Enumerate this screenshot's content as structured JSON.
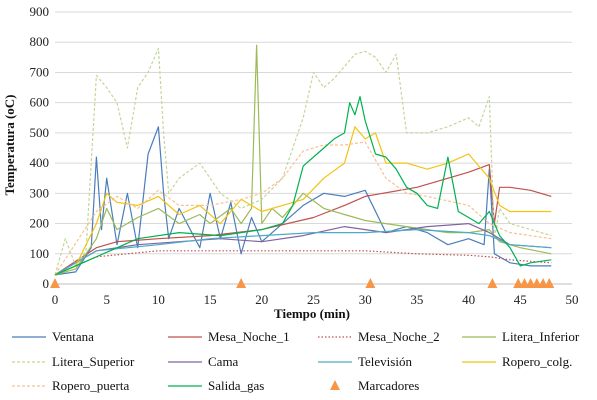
{
  "chart_data": {
    "type": "line",
    "title": "",
    "xlabel": "Tiempo (min)",
    "ylabel": "Temperatura (oC)",
    "xlim": [
      0,
      50
    ],
    "ylim": [
      0,
      900
    ],
    "xticks": [
      0,
      5,
      10,
      15,
      20,
      25,
      30,
      35,
      40,
      45,
      50
    ],
    "yticks": [
      0,
      100,
      200,
      300,
      400,
      500,
      600,
      700,
      800,
      900
    ],
    "grid": "horizontal",
    "legend_position": "bottom",
    "series": [
      {
        "name": "Ventana",
        "color": "#4a7ebb",
        "dash": "solid",
        "x": [
          0,
          2,
          3.5,
          4,
          4.5,
          5,
          6,
          7,
          8,
          9,
          10,
          10.5,
          11,
          12,
          14,
          15,
          16,
          17,
          18,
          19,
          20,
          22,
          24,
          26,
          28,
          30,
          32,
          34,
          36,
          38,
          40,
          41.5,
          42,
          42.5,
          44,
          46,
          48
        ],
        "y": [
          30,
          40,
          120,
          420,
          180,
          350,
          130,
          300,
          120,
          430,
          520,
          300,
          150,
          250,
          120,
          300,
          150,
          270,
          100,
          220,
          140,
          200,
          260,
          300,
          290,
          310,
          170,
          190,
          170,
          130,
          150,
          130,
          380,
          100,
          70,
          60,
          60
        ]
      },
      {
        "name": "Mesa_Noche_1",
        "color": "#c0504d",
        "dash": "solid",
        "x": [
          0,
          4,
          6,
          10,
          15,
          20,
          25,
          28,
          30,
          35,
          40,
          42,
          42.5,
          43,
          44,
          46,
          48
        ],
        "y": [
          30,
          120,
          140,
          150,
          160,
          180,
          220,
          260,
          290,
          320,
          370,
          395,
          200,
          320,
          320,
          310,
          290
        ]
      },
      {
        "name": "Mesa_Noche_2",
        "color": "#c0504d",
        "dash": "dotted",
        "x": [
          0,
          4,
          10,
          15,
          20,
          25,
          30,
          35,
          40,
          42,
          44,
          48
        ],
        "y": [
          30,
          90,
          110,
          110,
          110,
          110,
          110,
          100,
          95,
          90,
          80,
          70
        ]
      },
      {
        "name": "Litera_Inferior",
        "color": "#9bbb59",
        "dash": "solid",
        "x": [
          0,
          2,
          4,
          5,
          6,
          8,
          10,
          12,
          14,
          15,
          17,
          18,
          19,
          19.5,
          20,
          21,
          22,
          24,
          26,
          28,
          30,
          32,
          34,
          36,
          38,
          40,
          42,
          43,
          45,
          48
        ],
        "y": [
          30,
          50,
          150,
          250,
          180,
          220,
          250,
          200,
          230,
          200,
          250,
          200,
          250,
          790,
          200,
          250,
          220,
          300,
          250,
          230,
          210,
          200,
          190,
          180,
          170,
          170,
          180,
          140,
          120,
          100
        ]
      },
      {
        "name": "Litera_Superior",
        "color": "#c3d69b",
        "dash": "dashed",
        "x": [
          0,
          1,
          2,
          3,
          3.5,
          4,
          5,
          6,
          7,
          8,
          9,
          10,
          10.5,
          11,
          12,
          14,
          16,
          18,
          20,
          22,
          24,
          25,
          26,
          27,
          28,
          29,
          30,
          31,
          32,
          33,
          34,
          36,
          38,
          40,
          41,
          42,
          42.5,
          43,
          44,
          46,
          48
        ],
        "y": [
          30,
          150,
          60,
          110,
          400,
          690,
          650,
          600,
          450,
          650,
          700,
          780,
          500,
          300,
          350,
          400,
          300,
          250,
          280,
          350,
          550,
          700,
          650,
          680,
          720,
          760,
          770,
          750,
          700,
          760,
          500,
          500,
          520,
          550,
          520,
          620,
          150,
          250,
          200,
          180,
          160
        ]
      },
      {
        "name": "Cama",
        "color": "#8064a2",
        "dash": "solid",
        "x": [
          0,
          4,
          8,
          12,
          16,
          20,
          24,
          28,
          32,
          36,
          40,
          42,
          44,
          48
        ],
        "y": [
          30,
          110,
          130,
          140,
          150,
          140,
          160,
          190,
          170,
          190,
          200,
          170,
          130,
          120
        ]
      },
      {
        "name": "Televisión",
        "color": "#4bacc6",
        "dash": "solid",
        "x": [
          0,
          4,
          10,
          15,
          20,
          25,
          30,
          35,
          40,
          42,
          44,
          48
        ],
        "y": [
          30,
          110,
          130,
          150,
          160,
          170,
          170,
          180,
          170,
          160,
          130,
          120
        ]
      },
      {
        "name": "Ropero_colg.",
        "color": "#f2c314",
        "dash": "solid",
        "x": [
          0,
          2,
          4,
          5,
          6,
          8,
          10,
          12,
          14,
          16,
          18,
          20,
          22,
          24,
          26,
          28,
          29,
          30,
          31,
          32,
          34,
          36,
          38,
          40,
          41,
          42,
          43,
          44,
          46,
          48
        ],
        "y": [
          30,
          60,
          200,
          300,
          270,
          260,
          290,
          230,
          260,
          200,
          280,
          240,
          260,
          280,
          350,
          400,
          520,
          480,
          500,
          400,
          400,
          380,
          400,
          430,
          390,
          350,
          260,
          240,
          240,
          240
        ]
      },
      {
        "name": "Ropero_puerta",
        "color": "#fac08f",
        "dash": "dashed",
        "x": [
          0,
          4,
          6,
          8,
          10,
          12,
          15,
          18,
          20,
          22,
          24,
          26,
          28,
          30,
          32,
          34,
          36,
          40,
          42,
          44,
          48
        ],
        "y": [
          30,
          240,
          290,
          250,
          310,
          260,
          260,
          280,
          300,
          350,
          440,
          460,
          460,
          470,
          350,
          300,
          290,
          260,
          200,
          170,
          150
        ]
      },
      {
        "name": "Salida_gas",
        "color": "#00b050",
        "dash": "solid",
        "x": [
          0,
          4,
          8,
          12,
          16,
          20,
          22,
          23,
          24,
          26,
          27,
          28,
          28.5,
          29,
          29.5,
          30,
          31,
          32,
          33,
          34,
          35,
          36,
          37,
          38,
          39,
          40,
          41,
          42,
          43,
          44,
          45,
          46,
          48
        ],
        "y": [
          30,
          90,
          150,
          170,
          160,
          180,
          200,
          260,
          390,
          450,
          480,
          500,
          600,
          560,
          620,
          540,
          430,
          420,
          380,
          320,
          300,
          260,
          250,
          420,
          240,
          220,
          200,
          240,
          160,
          120,
          60,
          70,
          80
        ]
      }
    ],
    "markers": {
      "name": "Marcadores",
      "color": "#f79646",
      "x": [
        0,
        18,
        30.5,
        42.3,
        44.8,
        45.4,
        46,
        46.6,
        47.2,
        47.8
      ],
      "y": [
        0,
        0,
        0,
        0,
        0,
        0,
        0,
        0,
        0,
        0
      ]
    }
  }
}
